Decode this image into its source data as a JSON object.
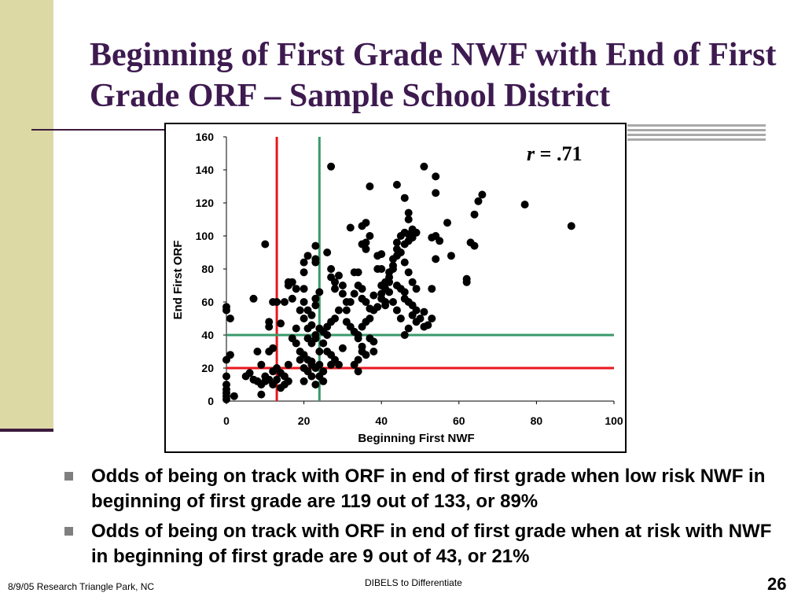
{
  "slide": {
    "title": "Beginning of First Grade NWF with End of First Grade ORF – Sample School District",
    "bullets": [
      "Odds of being on track with ORF in end of first grade when low risk NWF in beginning of first grade are 119 out of 133, or 89%",
      "Odds of being on track with ORF in end of first grade when at risk with NWF in beginning of first grade are 9 out of 43, or 21%"
    ],
    "footer_left": "8/9/05 Research Triangle Park, NC",
    "footer_center": "DIBELS to Differentiate",
    "page_number": "26",
    "colors": {
      "title": "#3d1a4f",
      "sidebar": "#dcd9a5",
      "red_line": "#e8161c",
      "green_line": "#3a9a6a"
    }
  },
  "chart_data": {
    "type": "scatter",
    "xlabel": "Beginning First NWF",
    "ylabel": "End First ORF",
    "xlim": [
      0,
      100
    ],
    "ylim": [
      0,
      160
    ],
    "xticks": [
      "0",
      "20",
      "40",
      "60",
      "80",
      "100"
    ],
    "yticks": [
      "0",
      "20",
      "40",
      "60",
      "80",
      "100",
      "120",
      "140",
      "160"
    ],
    "annotation_var": "r",
    "annotation_value": " = .71",
    "grid": false,
    "reference_lines": [
      {
        "axis": "x",
        "value": 13,
        "color": "red"
      },
      {
        "axis": "x",
        "value": 24,
        "color": "green"
      },
      {
        "axis": "y",
        "value": 20,
        "color": "red"
      },
      {
        "axis": "y",
        "value": 40,
        "color": "green"
      }
    ],
    "points": [
      [
        27,
        142
      ],
      [
        51,
        142
      ],
      [
        54,
        136
      ],
      [
        37,
        130
      ],
      [
        44,
        131
      ],
      [
        46,
        123
      ],
      [
        54,
        126
      ],
      [
        66,
        125
      ],
      [
        65,
        121
      ],
      [
        77,
        119
      ],
      [
        64,
        113
      ],
      [
        47,
        114
      ],
      [
        89,
        106
      ],
      [
        0,
        57
      ],
      [
        0,
        55
      ],
      [
        1,
        50
      ],
      [
        1,
        28
      ],
      [
        0,
        25
      ],
      [
        0,
        15
      ],
      [
        0,
        10
      ],
      [
        0,
        5
      ],
      [
        0,
        3
      ],
      [
        0,
        1
      ],
      [
        2,
        3
      ],
      [
        0,
        7
      ],
      [
        5,
        15
      ],
      [
        6,
        17
      ],
      [
        7,
        13
      ],
      [
        8,
        12
      ],
      [
        9,
        10
      ],
      [
        9,
        4
      ],
      [
        10,
        12
      ],
      [
        10,
        15
      ],
      [
        11,
        13
      ],
      [
        12,
        10
      ],
      [
        12,
        18
      ],
      [
        13,
        13
      ],
      [
        13,
        20
      ],
      [
        14,
        17
      ],
      [
        14,
        8
      ],
      [
        15,
        10
      ],
      [
        15,
        15
      ],
      [
        16,
        22
      ],
      [
        16,
        12
      ],
      [
        7,
        62
      ],
      [
        10,
        95
      ],
      [
        11,
        48
      ],
      [
        11,
        45
      ],
      [
        11,
        30
      ],
      [
        12,
        32
      ],
      [
        8,
        30
      ],
      [
        9,
        22
      ],
      [
        12,
        60
      ],
      [
        13,
        60
      ],
      [
        14,
        47
      ],
      [
        15,
        60
      ],
      [
        16,
        70
      ],
      [
        16,
        72
      ],
      [
        17,
        72
      ],
      [
        17,
        62
      ],
      [
        18,
        68
      ],
      [
        18,
        44
      ],
      [
        19,
        55
      ],
      [
        20,
        60
      ],
      [
        18,
        35
      ],
      [
        19,
        30
      ],
      [
        20,
        28
      ],
      [
        21,
        25
      ],
      [
        22,
        24
      ],
      [
        22,
        22
      ],
      [
        23,
        20
      ],
      [
        24,
        22
      ],
      [
        25,
        18
      ],
      [
        17,
        38
      ],
      [
        21,
        38
      ],
      [
        22,
        35
      ],
      [
        23,
        38
      ],
      [
        24,
        30
      ],
      [
        19,
        25
      ],
      [
        20,
        20
      ],
      [
        21,
        18
      ],
      [
        22,
        15
      ],
      [
        24,
        15
      ],
      [
        25,
        12
      ],
      [
        23,
        10
      ],
      [
        20,
        12
      ],
      [
        21,
        44
      ],
      [
        22,
        46
      ],
      [
        23,
        40
      ],
      [
        24,
        44
      ],
      [
        25,
        42
      ],
      [
        26,
        45
      ],
      [
        20,
        50
      ],
      [
        21,
        55
      ],
      [
        22,
        52
      ],
      [
        23,
        58
      ],
      [
        23,
        62
      ],
      [
        24,
        66
      ],
      [
        20,
        68
      ],
      [
        20,
        78
      ],
      [
        20,
        84
      ],
      [
        21,
        88
      ],
      [
        23,
        94
      ],
      [
        23,
        86
      ],
      [
        23,
        84
      ],
      [
        26,
        90
      ],
      [
        27,
        80
      ],
      [
        27,
        75
      ],
      [
        28,
        72
      ],
      [
        28,
        68
      ],
      [
        29,
        76
      ],
      [
        30,
        70
      ],
      [
        30,
        65
      ],
      [
        31,
        60
      ],
      [
        31,
        55
      ],
      [
        29,
        55
      ],
      [
        28,
        50
      ],
      [
        27,
        48
      ],
      [
        26,
        40
      ],
      [
        25,
        35
      ],
      [
        26,
        30
      ],
      [
        27,
        28
      ],
      [
        28,
        25
      ],
      [
        27,
        22
      ],
      [
        29,
        22
      ],
      [
        30,
        32
      ],
      [
        31,
        48
      ],
      [
        32,
        45
      ],
      [
        33,
        42
      ],
      [
        34,
        40
      ],
      [
        34,
        38
      ],
      [
        35,
        33
      ],
      [
        35,
        30
      ],
      [
        36,
        28
      ],
      [
        34,
        18
      ],
      [
        33,
        22
      ],
      [
        34,
        25
      ],
      [
        32,
        60
      ],
      [
        33,
        65
      ],
      [
        34,
        70
      ],
      [
        35,
        68
      ],
      [
        35,
        62
      ],
      [
        36,
        60
      ],
      [
        37,
        56
      ],
      [
        38,
        55
      ],
      [
        37,
        50
      ],
      [
        36,
        48
      ],
      [
        35,
        45
      ],
      [
        37,
        38
      ],
      [
        38,
        36
      ],
      [
        38,
        30
      ],
      [
        33,
        78
      ],
      [
        34,
        78
      ],
      [
        35,
        95
      ],
      [
        36,
        96
      ],
      [
        36,
        92
      ],
      [
        37,
        100
      ],
      [
        35,
        106
      ],
      [
        36,
        108
      ],
      [
        32,
        105
      ],
      [
        39,
        80
      ],
      [
        40,
        70
      ],
      [
        40,
        65
      ],
      [
        41,
        60
      ],
      [
        41,
        68
      ],
      [
        42,
        72
      ],
      [
        42,
        75
      ],
      [
        43,
        80
      ],
      [
        43,
        86
      ],
      [
        44,
        92
      ],
      [
        44,
        96
      ],
      [
        45,
        100
      ],
      [
        46,
        102
      ],
      [
        47,
        101
      ],
      [
        48,
        103
      ],
      [
        48,
        99
      ],
      [
        47,
        97
      ],
      [
        46,
        95
      ],
      [
        45,
        90
      ],
      [
        44,
        88
      ],
      [
        43,
        82
      ],
      [
        42,
        78
      ],
      [
        41,
        72
      ],
      [
        40,
        80
      ],
      [
        39,
        88
      ],
      [
        40,
        89
      ],
      [
        44,
        70
      ],
      [
        45,
        68
      ],
      [
        46,
        66
      ],
      [
        46,
        62
      ],
      [
        47,
        60
      ],
      [
        48,
        58
      ],
      [
        49,
        55
      ],
      [
        48,
        52
      ],
      [
        50,
        50
      ],
      [
        49,
        48
      ],
      [
        51,
        45
      ],
      [
        47,
        44
      ],
      [
        46,
        40
      ],
      [
        45,
        50
      ],
      [
        44,
        55
      ],
      [
        43,
        60
      ],
      [
        42,
        66
      ],
      [
        41,
        58
      ],
      [
        40,
        62
      ],
      [
        39,
        57
      ],
      [
        38,
        64
      ],
      [
        47,
        110
      ],
      [
        48,
        104
      ],
      [
        49,
        102
      ],
      [
        46,
        84
      ],
      [
        47,
        78
      ],
      [
        48,
        72
      ],
      [
        49,
        68
      ],
      [
        53,
        68
      ],
      [
        53,
        99
      ],
      [
        54,
        100
      ],
      [
        55,
        97
      ],
      [
        57,
        108
      ],
      [
        58,
        88
      ],
      [
        54,
        86
      ],
      [
        62,
        74
      ],
      [
        62,
        72
      ],
      [
        63,
        96
      ],
      [
        64,
        94
      ],
      [
        53,
        50
      ],
      [
        52,
        46
      ],
      [
        51,
        54
      ]
    ]
  }
}
